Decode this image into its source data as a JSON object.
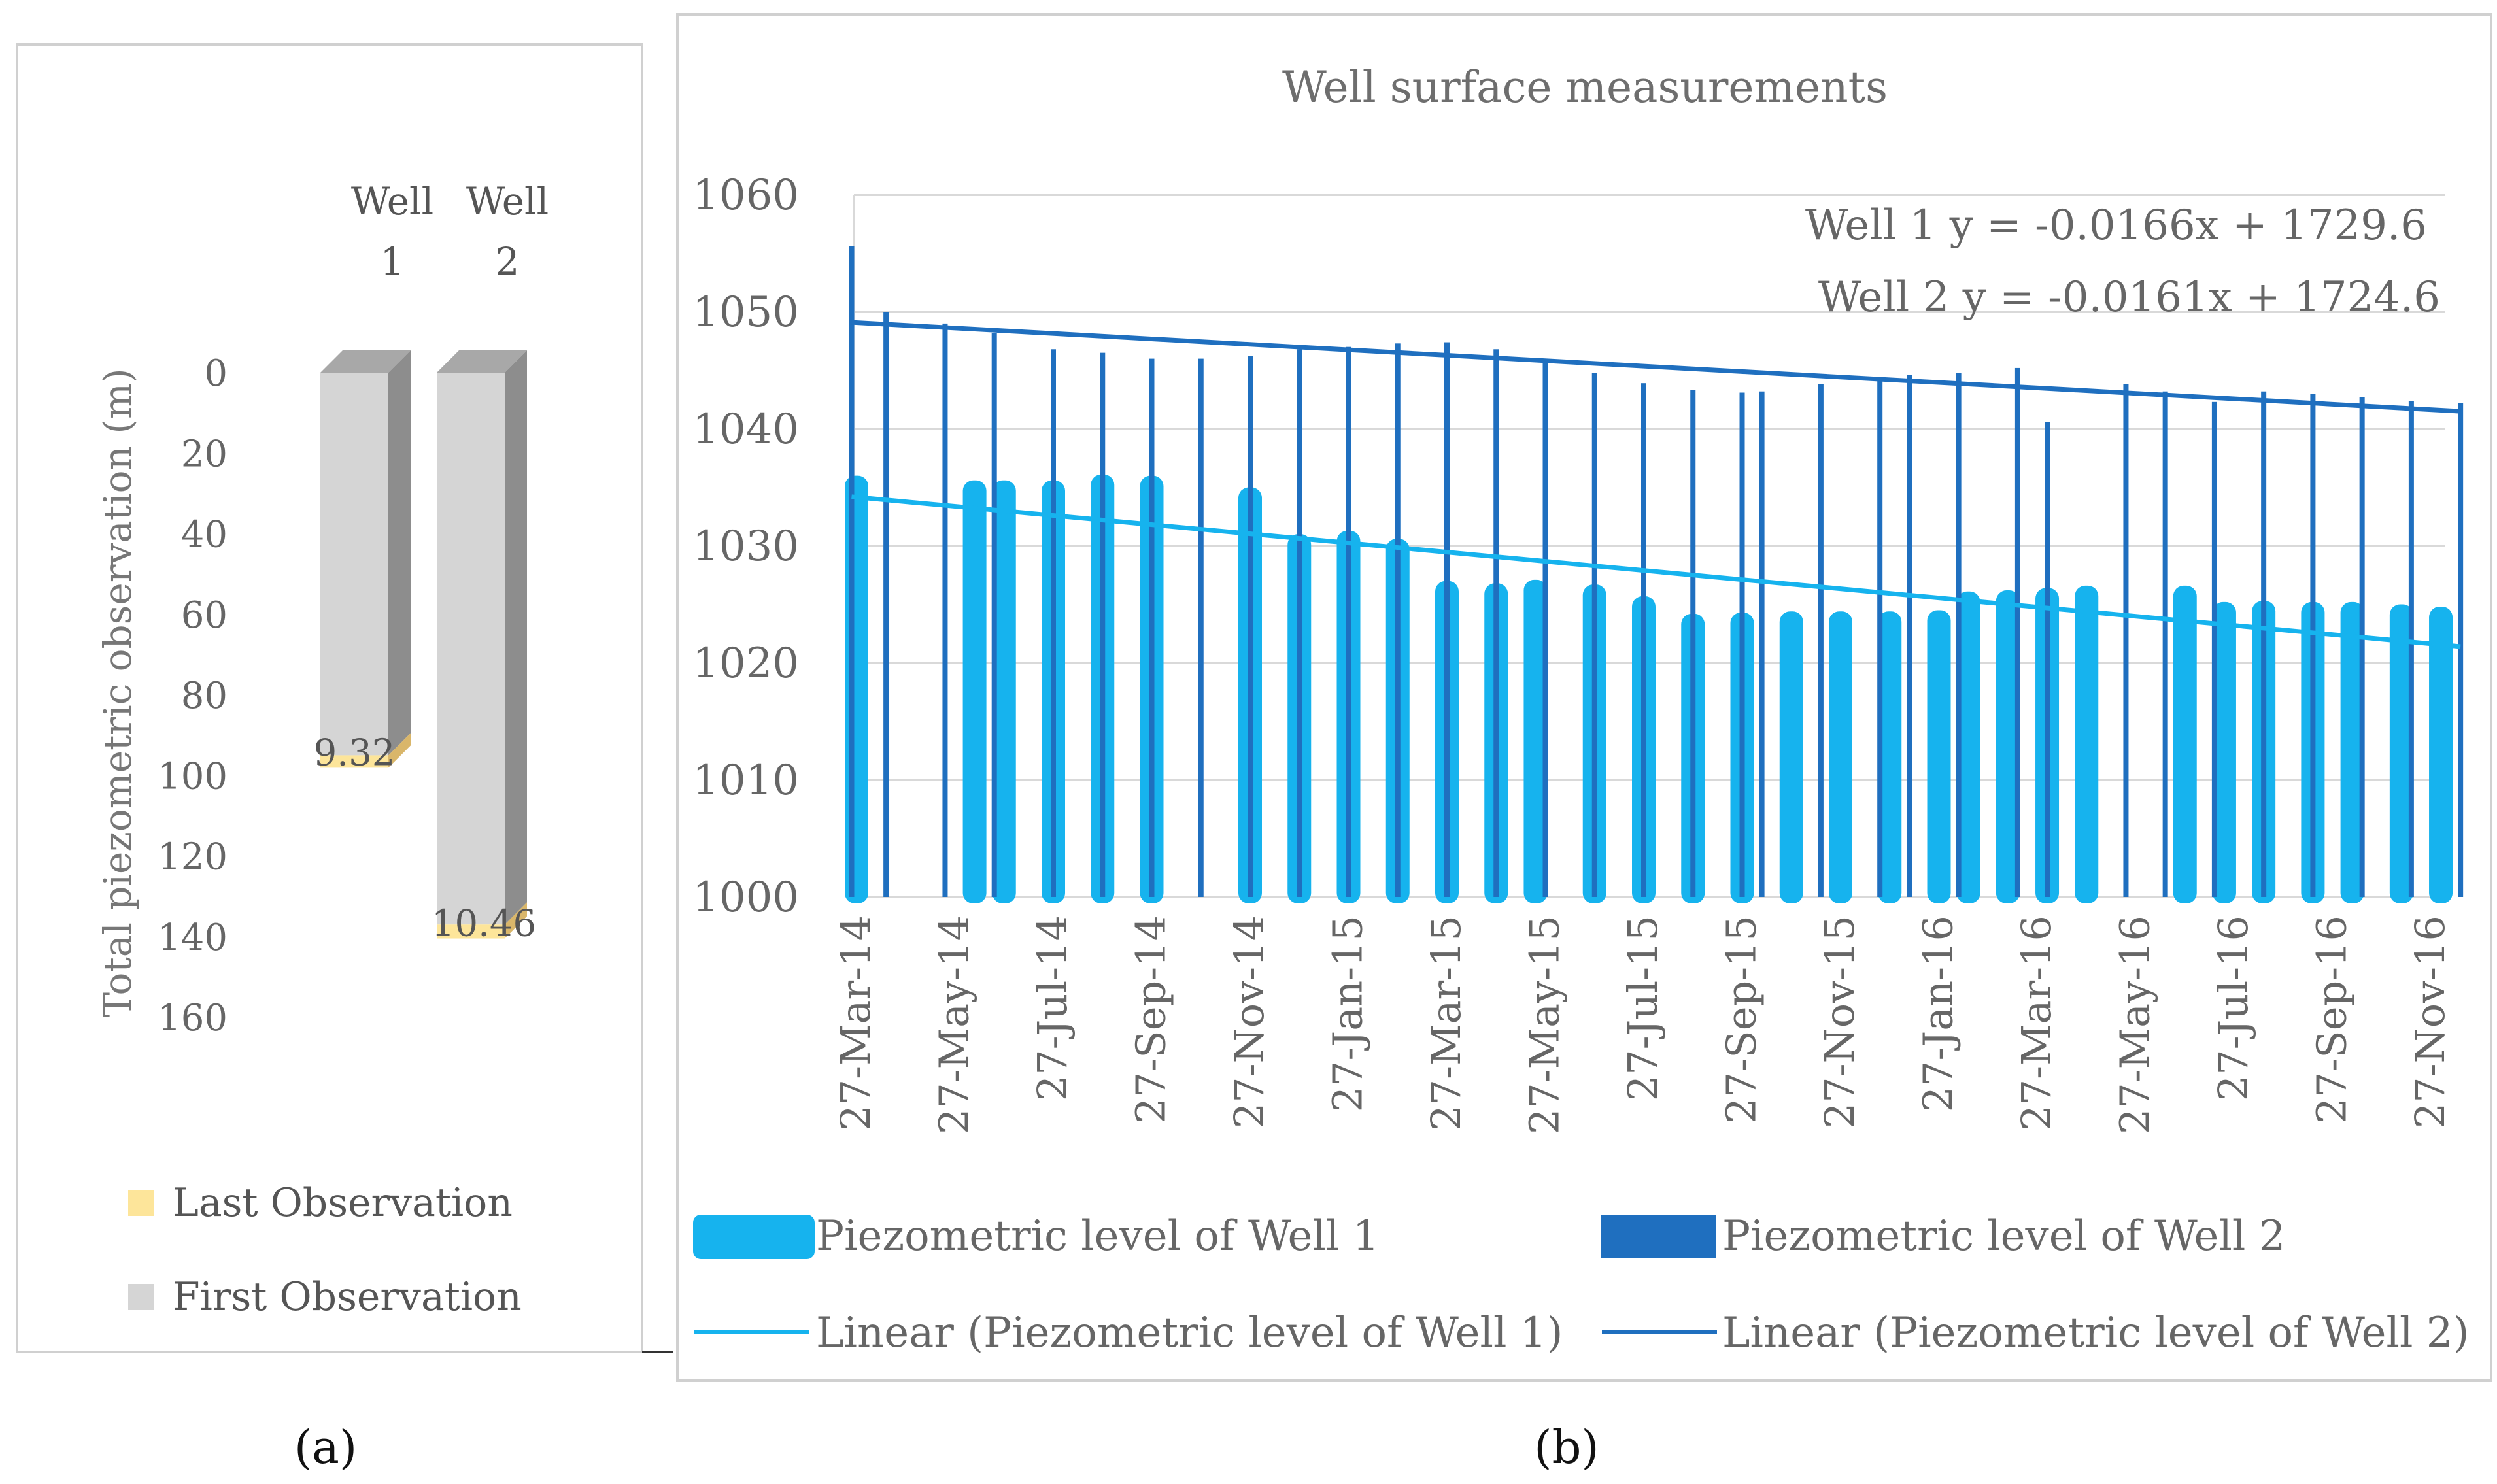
{
  "colors": {
    "well1": "#16b3ee",
    "well2": "#1f6fbf",
    "first_obs": "#d5d5d5",
    "first_obs_side": "#8d8d8d",
    "first_obs_top": "#a8a8a8",
    "last_obs": "#fde59a",
    "grid": "#d9d9d9",
    "axis_text": "#6e6e6e",
    "frame": "#d0d0d0"
  },
  "panel_a": {
    "label": "(a)",
    "columns": [
      "Well\n1",
      "Well\n2"
    ],
    "column_header_line1": [
      "Well",
      "Well"
    ],
    "column_header_line2": [
      "1",
      "2"
    ],
    "ylabel": "Total piezometric observation (m)",
    "y_ticks": [
      "0",
      "20",
      "40",
      "60",
      "80",
      "100",
      "120",
      "140",
      "160"
    ],
    "legend": [
      "Last Observation",
      "First Observation"
    ]
  },
  "panel_b": {
    "label": "(b)",
    "title": "Well surface measurements",
    "eq_well1": "Well 1 y = -0.0166x + 1729.6",
    "eq_well2": "Well 2 y = -0.0161x + 1724.6",
    "legend": [
      "Piezometric level of Well 1",
      "Piezometric level of Well 2",
      "Linear (Piezometric level of Well 1)",
      "Linear (Piezometric level of Well 2)"
    ]
  },
  "chart_data": [
    {
      "type": "bar",
      "title": "",
      "ylabel": "Total piezometric observation (m)",
      "xlabel": "",
      "categories": [
        "Well 1",
        "Well 2"
      ],
      "ylim": [
        0,
        160
      ],
      "y_axis_inverted": true,
      "series": [
        {
          "name": "First Observation",
          "values": [
            95,
            137
          ]
        },
        {
          "name": "Last Observation",
          "values": [
            9.32,
            10.46
          ]
        }
      ],
      "data_labels": [
        "9.32",
        "10.46"
      ]
    },
    {
      "type": "bar",
      "title": "Well surface measurements",
      "ylim": [
        1000,
        1060
      ],
      "y_ticks": [
        "1000",
        "1010",
        "1020",
        "1030",
        "1040",
        "1050",
        "1060"
      ],
      "x_ticks": [
        "27-Mar-14",
        "27-May-14",
        "27-Jul-14",
        "27-Sep-14",
        "27-Nov-14",
        "27-Jan-15",
        "27-Mar-15",
        "27-May-15",
        "27-Jul-15",
        "27-Sep-15",
        "27-Nov-15",
        "27-Jan-16",
        "27-Mar-16",
        "27-May-16",
        "27-Jul-16",
        "27-Sep-16",
        "27-Nov-16"
      ],
      "series": [
        {
          "name": "Piezometric level of Well 1",
          "points": [
            {
              "x": 0,
              "y": 1036
            },
            {
              "x": 1.2,
              "y": 1035.6
            },
            {
              "x": 1.5,
              "y": 1035.6
            },
            {
              "x": 2.0,
              "y": 1035.6
            },
            {
              "x": 2.5,
              "y": 1036.1
            },
            {
              "x": 3.0,
              "y": 1036
            },
            {
              "x": 4.0,
              "y": 1035
            },
            {
              "x": 4.5,
              "y": 1031
            },
            {
              "x": 5.0,
              "y": 1031.3
            },
            {
              "x": 5.5,
              "y": 1030.6
            },
            {
              "x": 6.0,
              "y": 1027
            },
            {
              "x": 6.5,
              "y": 1026.8
            },
            {
              "x": 6.9,
              "y": 1027.1
            },
            {
              "x": 7.5,
              "y": 1026.7
            },
            {
              "x": 8.0,
              "y": 1025.7
            },
            {
              "x": 8.5,
              "y": 1024.2
            },
            {
              "x": 9.0,
              "y": 1024.3
            },
            {
              "x": 9.5,
              "y": 1024.4
            },
            {
              "x": 10.0,
              "y": 1024.4
            },
            {
              "x": 10.5,
              "y": 1024.4
            },
            {
              "x": 11.0,
              "y": 1024.5
            },
            {
              "x": 11.3,
              "y": 1026.1
            },
            {
              "x": 11.7,
              "y": 1026.2
            },
            {
              "x": 12.1,
              "y": 1026.4
            },
            {
              "x": 12.5,
              "y": 1026.6
            },
            {
              "x": 13.5,
              "y": 1026.6
            },
            {
              "x": 13.9,
              "y": 1025.2
            },
            {
              "x": 14.3,
              "y": 1025.3
            },
            {
              "x": 14.8,
              "y": 1025.2
            },
            {
              "x": 15.2,
              "y": 1025.2
            },
            {
              "x": 15.7,
              "y": 1025
            },
            {
              "x": 16.1,
              "y": 1024.8
            }
          ]
        },
        {
          "name": "Piezometric level of Well 2",
          "points": [
            {
              "x": -0.05,
              "y": 1055.6
            },
            {
              "x": 0.3,
              "y": 1050
            },
            {
              "x": 0.9,
              "y": 1049
            },
            {
              "x": 1.4,
              "y": 1048.2
            },
            {
              "x": 2.0,
              "y": 1046.8
            },
            {
              "x": 2.5,
              "y": 1046.5
            },
            {
              "x": 3.0,
              "y": 1046
            },
            {
              "x": 3.5,
              "y": 1046
            },
            {
              "x": 4.0,
              "y": 1046.2
            },
            {
              "x": 4.5,
              "y": 1046.8
            },
            {
              "x": 5.0,
              "y": 1047
            },
            {
              "x": 5.5,
              "y": 1047.3
            },
            {
              "x": 6.0,
              "y": 1047.4
            },
            {
              "x": 6.5,
              "y": 1046.8
            },
            {
              "x": 7.0,
              "y": 1045.9
            },
            {
              "x": 7.5,
              "y": 1044.8
            },
            {
              "x": 8.0,
              "y": 1043.9
            },
            {
              "x": 8.5,
              "y": 1043.3
            },
            {
              "x": 9.0,
              "y": 1043.1
            },
            {
              "x": 9.2,
              "y": 1043.2
            },
            {
              "x": 9.8,
              "y": 1043.8
            },
            {
              "x": 10.4,
              "y": 1044.2
            },
            {
              "x": 10.7,
              "y": 1044.6
            },
            {
              "x": 11.2,
              "y": 1044.8
            },
            {
              "x": 11.8,
              "y": 1045.2
            },
            {
              "x": 12.1,
              "y": 1040.6
            },
            {
              "x": 12.9,
              "y": 1043.8
            },
            {
              "x": 13.3,
              "y": 1043.2
            },
            {
              "x": 13.8,
              "y": 1042.3
            },
            {
              "x": 14.3,
              "y": 1043.2
            },
            {
              "x": 14.8,
              "y": 1043
            },
            {
              "x": 15.3,
              "y": 1042.7
            },
            {
              "x": 15.8,
              "y": 1042.4
            },
            {
              "x": 16.3,
              "y": 1042.2
            }
          ]
        }
      ],
      "trendlines": [
        {
          "name": "Linear (Piezometric level of Well 1)",
          "start": {
            "x": -0.05,
            "y": 1034.2
          },
          "end": {
            "x": 16.3,
            "y": 1021.4
          }
        },
        {
          "name": "Linear (Piezometric level of Well 2)",
          "start": {
            "x": -0.05,
            "y": 1049.1
          },
          "end": {
            "x": 16.3,
            "y": 1041.5
          }
        }
      ]
    }
  ]
}
